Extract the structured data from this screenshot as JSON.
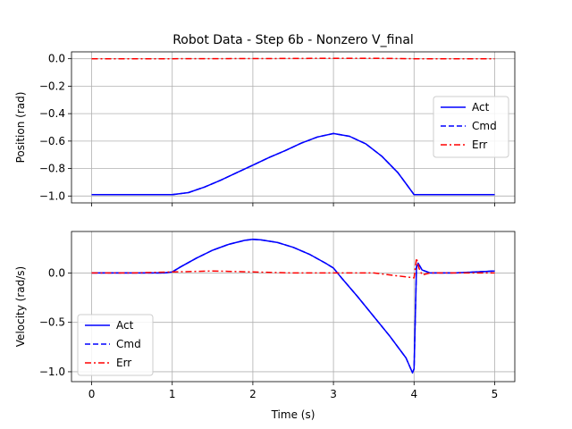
{
  "title": "Robot Data - Step 6b - Nonzero V_final",
  "chart_data": [
    {
      "type": "line",
      "title": "Robot Data - Step 6b - Nonzero V_final",
      "xlabel": "",
      "ylabel": "Position (rad)",
      "xlim": [
        -0.25,
        5.25
      ],
      "ylim": [
        -1.05,
        0.05
      ],
      "xticks": [
        0,
        1,
        2,
        3,
        4,
        5
      ],
      "xtick_labels": [
        "0",
        "1",
        "2",
        "3",
        "4",
        "5"
      ],
      "show_xtick_labels": false,
      "yticks": [
        -1.0,
        -0.8,
        -0.6,
        -0.4,
        -0.2,
        0.0
      ],
      "ytick_labels": [
        "−1.0",
        "−0.8",
        "−0.6",
        "−0.4",
        "−0.2",
        "0.0"
      ],
      "grid": true,
      "legend_position": "center-right",
      "series": [
        {
          "name": "Act",
          "color": "#0000ff",
          "style": "solid",
          "x": [
            0,
            0.5,
            1.0,
            1.2,
            1.4,
            1.6,
            1.8,
            2.0,
            2.2,
            2.4,
            2.6,
            2.8,
            3.0,
            3.2,
            3.4,
            3.6,
            3.8,
            3.9,
            4.0,
            4.2,
            4.5,
            5.0
          ],
          "y": [
            -0.99,
            -0.99,
            -0.99,
            -0.975,
            -0.935,
            -0.885,
            -0.83,
            -0.775,
            -0.72,
            -0.67,
            -0.615,
            -0.57,
            -0.545,
            -0.565,
            -0.62,
            -0.71,
            -0.83,
            -0.91,
            -0.99,
            -0.99,
            -0.99,
            -0.99
          ]
        },
        {
          "name": "Cmd",
          "color": "#0000ff",
          "style": "dashed",
          "x": [
            0,
            0.5,
            1.0,
            1.2,
            1.4,
            1.6,
            1.8,
            2.0,
            2.2,
            2.4,
            2.6,
            2.8,
            3.0,
            3.2,
            3.4,
            3.6,
            3.8,
            3.9,
            4.0,
            4.2,
            4.5,
            5.0
          ],
          "y": [
            -0.99,
            -0.99,
            -0.99,
            -0.975,
            -0.935,
            -0.885,
            -0.83,
            -0.775,
            -0.72,
            -0.67,
            -0.615,
            -0.57,
            -0.545,
            -0.565,
            -0.62,
            -0.71,
            -0.83,
            -0.91,
            -0.99,
            -0.99,
            -0.99,
            -0.99
          ]
        },
        {
          "name": "Err",
          "color": "#ff0000",
          "style": "dashdot",
          "x": [
            0,
            1.0,
            2.0,
            2.5,
            3.0,
            3.5,
            4.0,
            4.5,
            5.0
          ],
          "y": [
            0.0,
            0.0,
            0.001,
            0.002,
            0.003,
            0.003,
            0.0,
            0.0,
            0.0
          ]
        }
      ]
    },
    {
      "type": "line",
      "title": "",
      "xlabel": "Time (s)",
      "ylabel": "Velocity (rad/s)",
      "xlim": [
        -0.25,
        5.25
      ],
      "ylim": [
        -1.1,
        0.42
      ],
      "xticks": [
        0,
        1,
        2,
        3,
        4,
        5
      ],
      "xtick_labels": [
        "0",
        "1",
        "2",
        "3",
        "4",
        "5"
      ],
      "show_xtick_labels": true,
      "yticks": [
        -1.0,
        -0.5,
        0.0
      ],
      "ytick_labels": [
        "−1.0",
        "−0.5",
        "0.0"
      ],
      "grid": true,
      "legend_position": "lower-left",
      "series": [
        {
          "name": "Act",
          "color": "#0000ff",
          "style": "solid",
          "x": [
            0,
            0.5,
            0.9,
            1.0,
            1.1,
            1.3,
            1.5,
            1.7,
            1.9,
            2.0,
            2.1,
            2.3,
            2.5,
            2.7,
            2.9,
            3.0,
            3.1,
            3.3,
            3.5,
            3.7,
            3.9,
            3.98,
            4.0,
            4.03,
            4.05,
            4.1,
            4.2,
            4.5,
            5.0
          ],
          "y": [
            0.0,
            0.0,
            0.0,
            0.01,
            0.06,
            0.15,
            0.23,
            0.29,
            0.33,
            0.34,
            0.335,
            0.31,
            0.26,
            0.19,
            0.1,
            0.05,
            -0.05,
            -0.24,
            -0.44,
            -0.64,
            -0.86,
            -1.01,
            -0.97,
            0.06,
            0.1,
            0.03,
            0.0,
            0.0,
            0.02
          ]
        },
        {
          "name": "Cmd",
          "color": "#0000ff",
          "style": "dashed",
          "x": [
            0,
            0.5,
            0.9,
            1.0,
            1.1,
            1.3,
            1.5,
            1.7,
            1.9,
            2.0,
            2.1,
            2.3,
            2.5,
            2.7,
            2.9,
            3.0,
            3.1,
            3.3,
            3.5,
            3.7,
            3.9,
            3.98,
            4.0,
            4.03,
            4.05,
            4.1,
            4.2,
            4.5,
            5.0
          ],
          "y": [
            0.0,
            0.0,
            0.0,
            0.01,
            0.06,
            0.15,
            0.23,
            0.29,
            0.33,
            0.34,
            0.335,
            0.31,
            0.26,
            0.19,
            0.1,
            0.05,
            -0.05,
            -0.24,
            -0.44,
            -0.64,
            -0.86,
            -1.01,
            -0.97,
            0.06,
            0.1,
            0.03,
            0.0,
            0.0,
            0.02
          ]
        },
        {
          "name": "Err",
          "color": "#ff0000",
          "style": "dashdot",
          "x": [
            0,
            0.5,
            1.0,
            1.5,
            2.0,
            2.5,
            3.0,
            3.5,
            3.9,
            4.0,
            4.03,
            4.06,
            4.1,
            4.2,
            4.5,
            5.0
          ],
          "y": [
            0.0,
            0.0,
            0.01,
            0.02,
            0.01,
            0.0,
            0.0,
            0.0,
            -0.04,
            -0.05,
            0.15,
            0.05,
            -0.02,
            0.0,
            0.0,
            0.0
          ]
        }
      ]
    }
  ]
}
